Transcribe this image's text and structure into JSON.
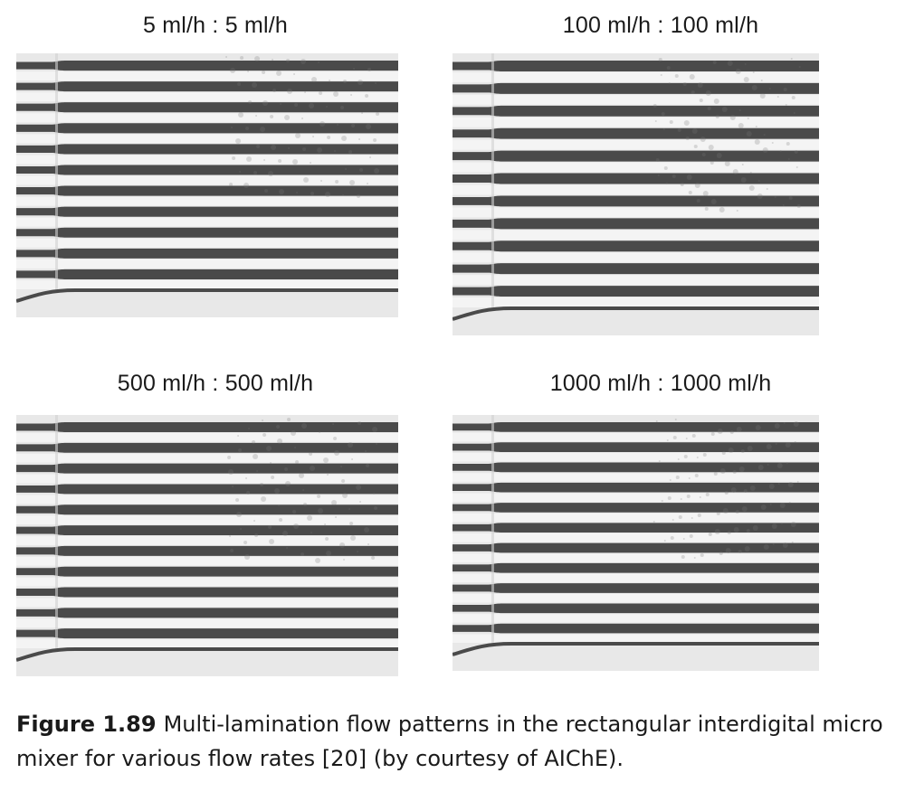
{
  "panels": [
    {
      "id": "p1",
      "title": "5 ml/h : 5 ml/h",
      "image": "multi-lamination flow pattern micrograph"
    },
    {
      "id": "p2",
      "title": "100 ml/h : 100 ml/h",
      "image": "multi-lamination flow pattern micrograph"
    },
    {
      "id": "p3",
      "title": "500 ml/h : 500 ml/h",
      "image": "multi-lamination flow pattern micrograph"
    },
    {
      "id": "p4",
      "title": "1000 ml/h : 1000 ml/h",
      "image": "multi-lamination flow pattern micrograph"
    }
  ],
  "caption": {
    "label": "Figure 1.89",
    "text": "Multi-lamination flow patterns in the rectangular interdigital micro mixer for various flow rates [20] (by courtesy of AIChE)."
  },
  "colors": {
    "stripe_dark": "#4a4a4a",
    "stripe_light": "#f4f4f4",
    "background": "#e8e8e8"
  }
}
